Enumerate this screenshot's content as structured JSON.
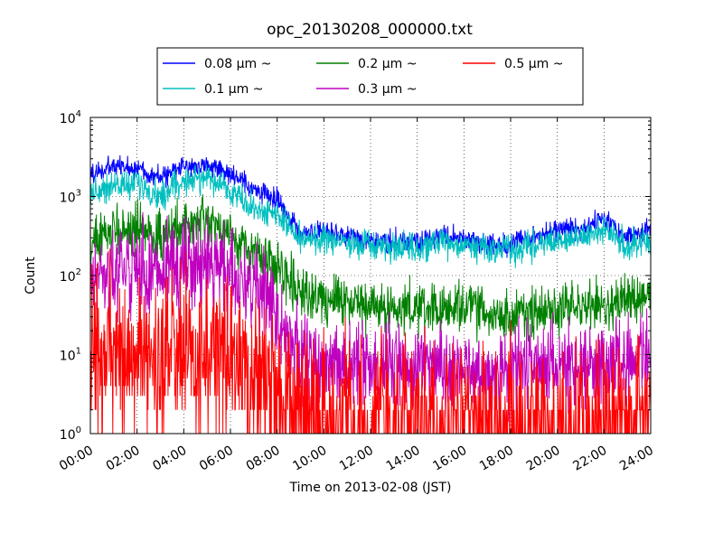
{
  "chart_data": {
    "type": "line",
    "title": "opc_20130208_000000.txt",
    "xlabel": "Time on 2013-02-08 (JST)",
    "ylabel": "Count",
    "y_scale": "log",
    "ylim": [
      1,
      10000
    ],
    "xlim": [
      "2013-02-08 00:00",
      "2013-02-09 00:00"
    ],
    "x_tick_labels": [
      "00:00",
      "02:00",
      "04:00",
      "06:00",
      "08:00",
      "10:00",
      "12:00",
      "14:00",
      "16:00",
      "18:00",
      "20:00",
      "22:00",
      "24:00"
    ],
    "y_tick_labels": [
      {
        "base": "10",
        "exp": "0"
      },
      {
        "base": "10",
        "exp": "1"
      },
      {
        "base": "10",
        "exp": "2"
      },
      {
        "base": "10",
        "exp": "3"
      },
      {
        "base": "10",
        "exp": "4"
      }
    ],
    "grid": true,
    "legend_position": "top-center",
    "x": [
      "00:00",
      "01:00",
      "02:00",
      "03:00",
      "04:00",
      "05:00",
      "06:00",
      "07:00",
      "08:00",
      "09:00",
      "10:00",
      "11:00",
      "12:00",
      "13:00",
      "14:00",
      "15:00",
      "16:00",
      "17:00",
      "18:00",
      "19:00",
      "20:00",
      "21:00",
      "22:00",
      "23:00",
      "24:00"
    ],
    "series": [
      {
        "name": "0.08 μm ~",
        "color": "#0000ff",
        "noise": 0.15,
        "values": [
          1900,
          2400,
          2300,
          1700,
          2400,
          2500,
          1900,
          1200,
          950,
          330,
          340,
          320,
          280,
          270,
          260,
          310,
          300,
          250,
          250,
          300,
          390,
          380,
          520,
          310,
          370
        ]
      },
      {
        "name": "0.1 μm ~",
        "color": "#00bfbf",
        "noise": 0.2,
        "values": [
          1100,
          1400,
          1400,
          1000,
          1600,
          1700,
          1200,
          700,
          600,
          280,
          280,
          270,
          230,
          220,
          215,
          250,
          250,
          210,
          210,
          240,
          280,
          290,
          380,
          230,
          280
        ]
      },
      {
        "name": "0.2 μm ~",
        "color": "#008000",
        "noise": 0.35,
        "values": [
          240,
          370,
          400,
          300,
          420,
          460,
          310,
          200,
          140,
          65,
          50,
          48,
          42,
          38,
          36,
          36,
          38,
          34,
          32,
          34,
          38,
          40,
          42,
          48,
          58
        ]
      },
      {
        "name": "0.3 μm ~",
        "color": "#bf00bf",
        "noise": 0.6,
        "values": [
          80,
          120,
          130,
          100,
          140,
          150,
          110,
          60,
          35,
          9,
          8,
          8,
          7,
          7,
          7,
          7,
          7,
          6,
          7,
          7,
          7,
          7,
          7,
          8,
          9
        ]
      },
      {
        "name": "0.5 μm ~",
        "color": "#ff0000",
        "noise": 1.1,
        "values": [
          7,
          11,
          9,
          7,
          10,
          11,
          8,
          4,
          3,
          2,
          1.6,
          1.5,
          1.5,
          1.5,
          1.4,
          1.4,
          1.4,
          1.4,
          1.4,
          1.4,
          1.4,
          1.4,
          1.5,
          1.5,
          1.6
        ]
      }
    ]
  }
}
